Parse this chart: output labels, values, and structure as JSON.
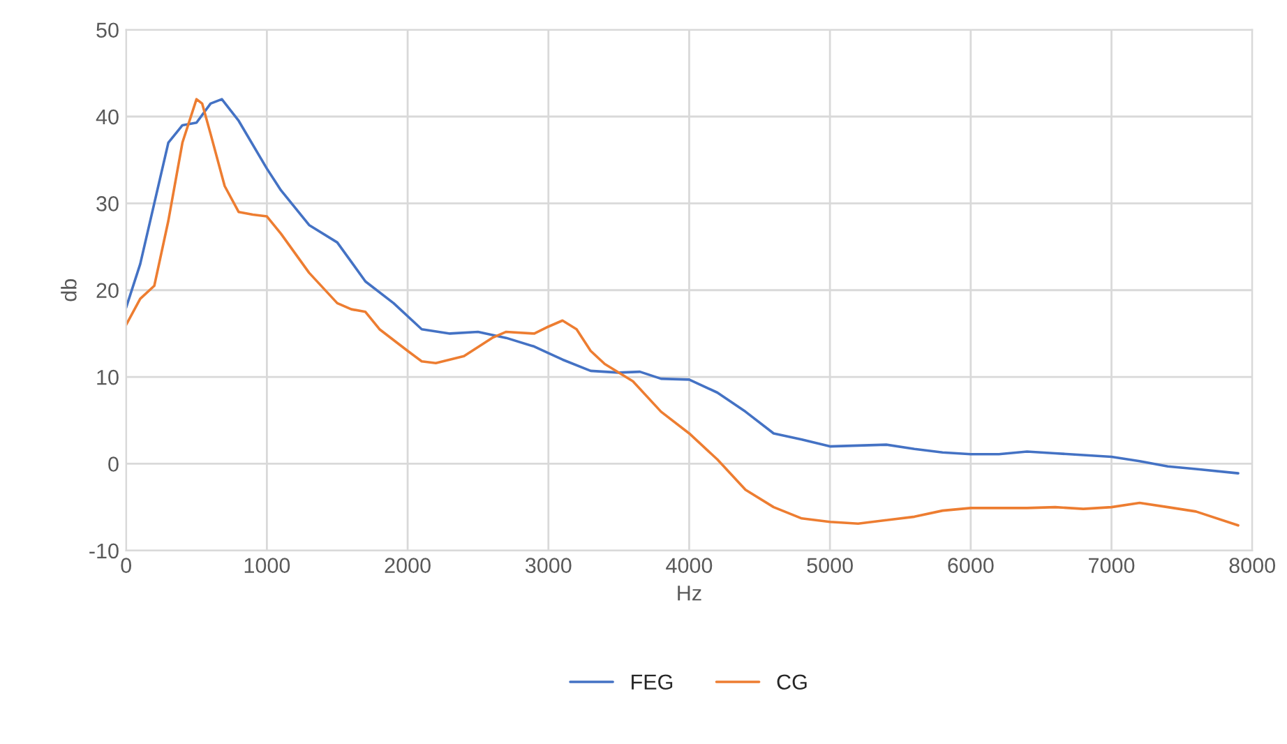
{
  "chart_data": {
    "type": "line",
    "xlabel": "Hz",
    "ylabel": "db",
    "xlim": [
      0,
      8000
    ],
    "xticks": [
      0,
      1000,
      2000,
      3000,
      4000,
      5000,
      6000,
      7000,
      8000
    ],
    "ylim": [
      -10,
      50
    ],
    "yticks": [
      -10,
      0,
      10,
      20,
      30,
      40,
      50
    ],
    "grid": true,
    "legend": "bottom",
    "marker": "none",
    "line_style": "solid",
    "series": [
      {
        "name": "FEG",
        "color": "#4472c4",
        "x": [
          0,
          100,
          200,
          300,
          400,
          500,
          600,
          680,
          800,
          1000,
          1100,
          1300,
          1500,
          1700,
          1900,
          2100,
          2300,
          2500,
          2700,
          2900,
          3100,
          3300,
          3500,
          3650,
          3800,
          4000,
          4200,
          4400,
          4600,
          4800,
          5000,
          5200,
          5400,
          5600,
          5800,
          6000,
          6200,
          6400,
          6600,
          6800,
          7000,
          7200,
          7400,
          7600,
          7900
        ],
        "values": [
          18,
          23,
          30,
          37,
          39,
          39.3,
          41.5,
          42,
          39.5,
          34,
          31.5,
          27.5,
          25.5,
          21,
          18.5,
          15.5,
          15,
          15.2,
          14.5,
          13.5,
          12,
          10.7,
          10.5,
          10.6,
          9.8,
          9.7,
          8.2,
          6,
          3.5,
          2.8,
          2,
          2.1,
          2.2,
          1.7,
          1.3,
          1.1,
          1.1,
          1.4,
          1.2,
          1,
          0.8,
          0.3,
          -0.3,
          -0.6,
          -1.1
        ]
      },
      {
        "name": "CG",
        "color": "#ed7d31",
        "x": [
          0,
          100,
          200,
          300,
          400,
          500,
          540,
          600,
          700,
          800,
          900,
          1000,
          1100,
          1300,
          1500,
          1600,
          1700,
          1800,
          2000,
          2100,
          2200,
          2400,
          2600,
          2700,
          2900,
          3000,
          3100,
          3200,
          3300,
          3400,
          3600,
          3800,
          4000,
          4200,
          4400,
          4600,
          4800,
          5000,
          5200,
          5400,
          5600,
          5800,
          6000,
          6200,
          6400,
          6600,
          6800,
          7000,
          7200,
          7400,
          7600,
          7900
        ],
        "values": [
          16,
          19,
          20.5,
          28,
          37,
          42,
          41.5,
          38,
          32,
          29,
          28.7,
          28.5,
          26.5,
          22,
          18.5,
          17.8,
          17.5,
          15.5,
          13,
          11.8,
          11.6,
          12.4,
          14.5,
          15.2,
          15,
          15.8,
          16.5,
          15.5,
          13,
          11.5,
          9.5,
          6,
          3.5,
          0.5,
          -3,
          -5,
          -6.3,
          -6.7,
          -6.9,
          -6.5,
          -6.1,
          -5.4,
          -5.1,
          -5.1,
          -5.1,
          -5,
          -5.2,
          -5,
          -4.5,
          -5,
          -5.5,
          -7.1
        ]
      }
    ]
  }
}
